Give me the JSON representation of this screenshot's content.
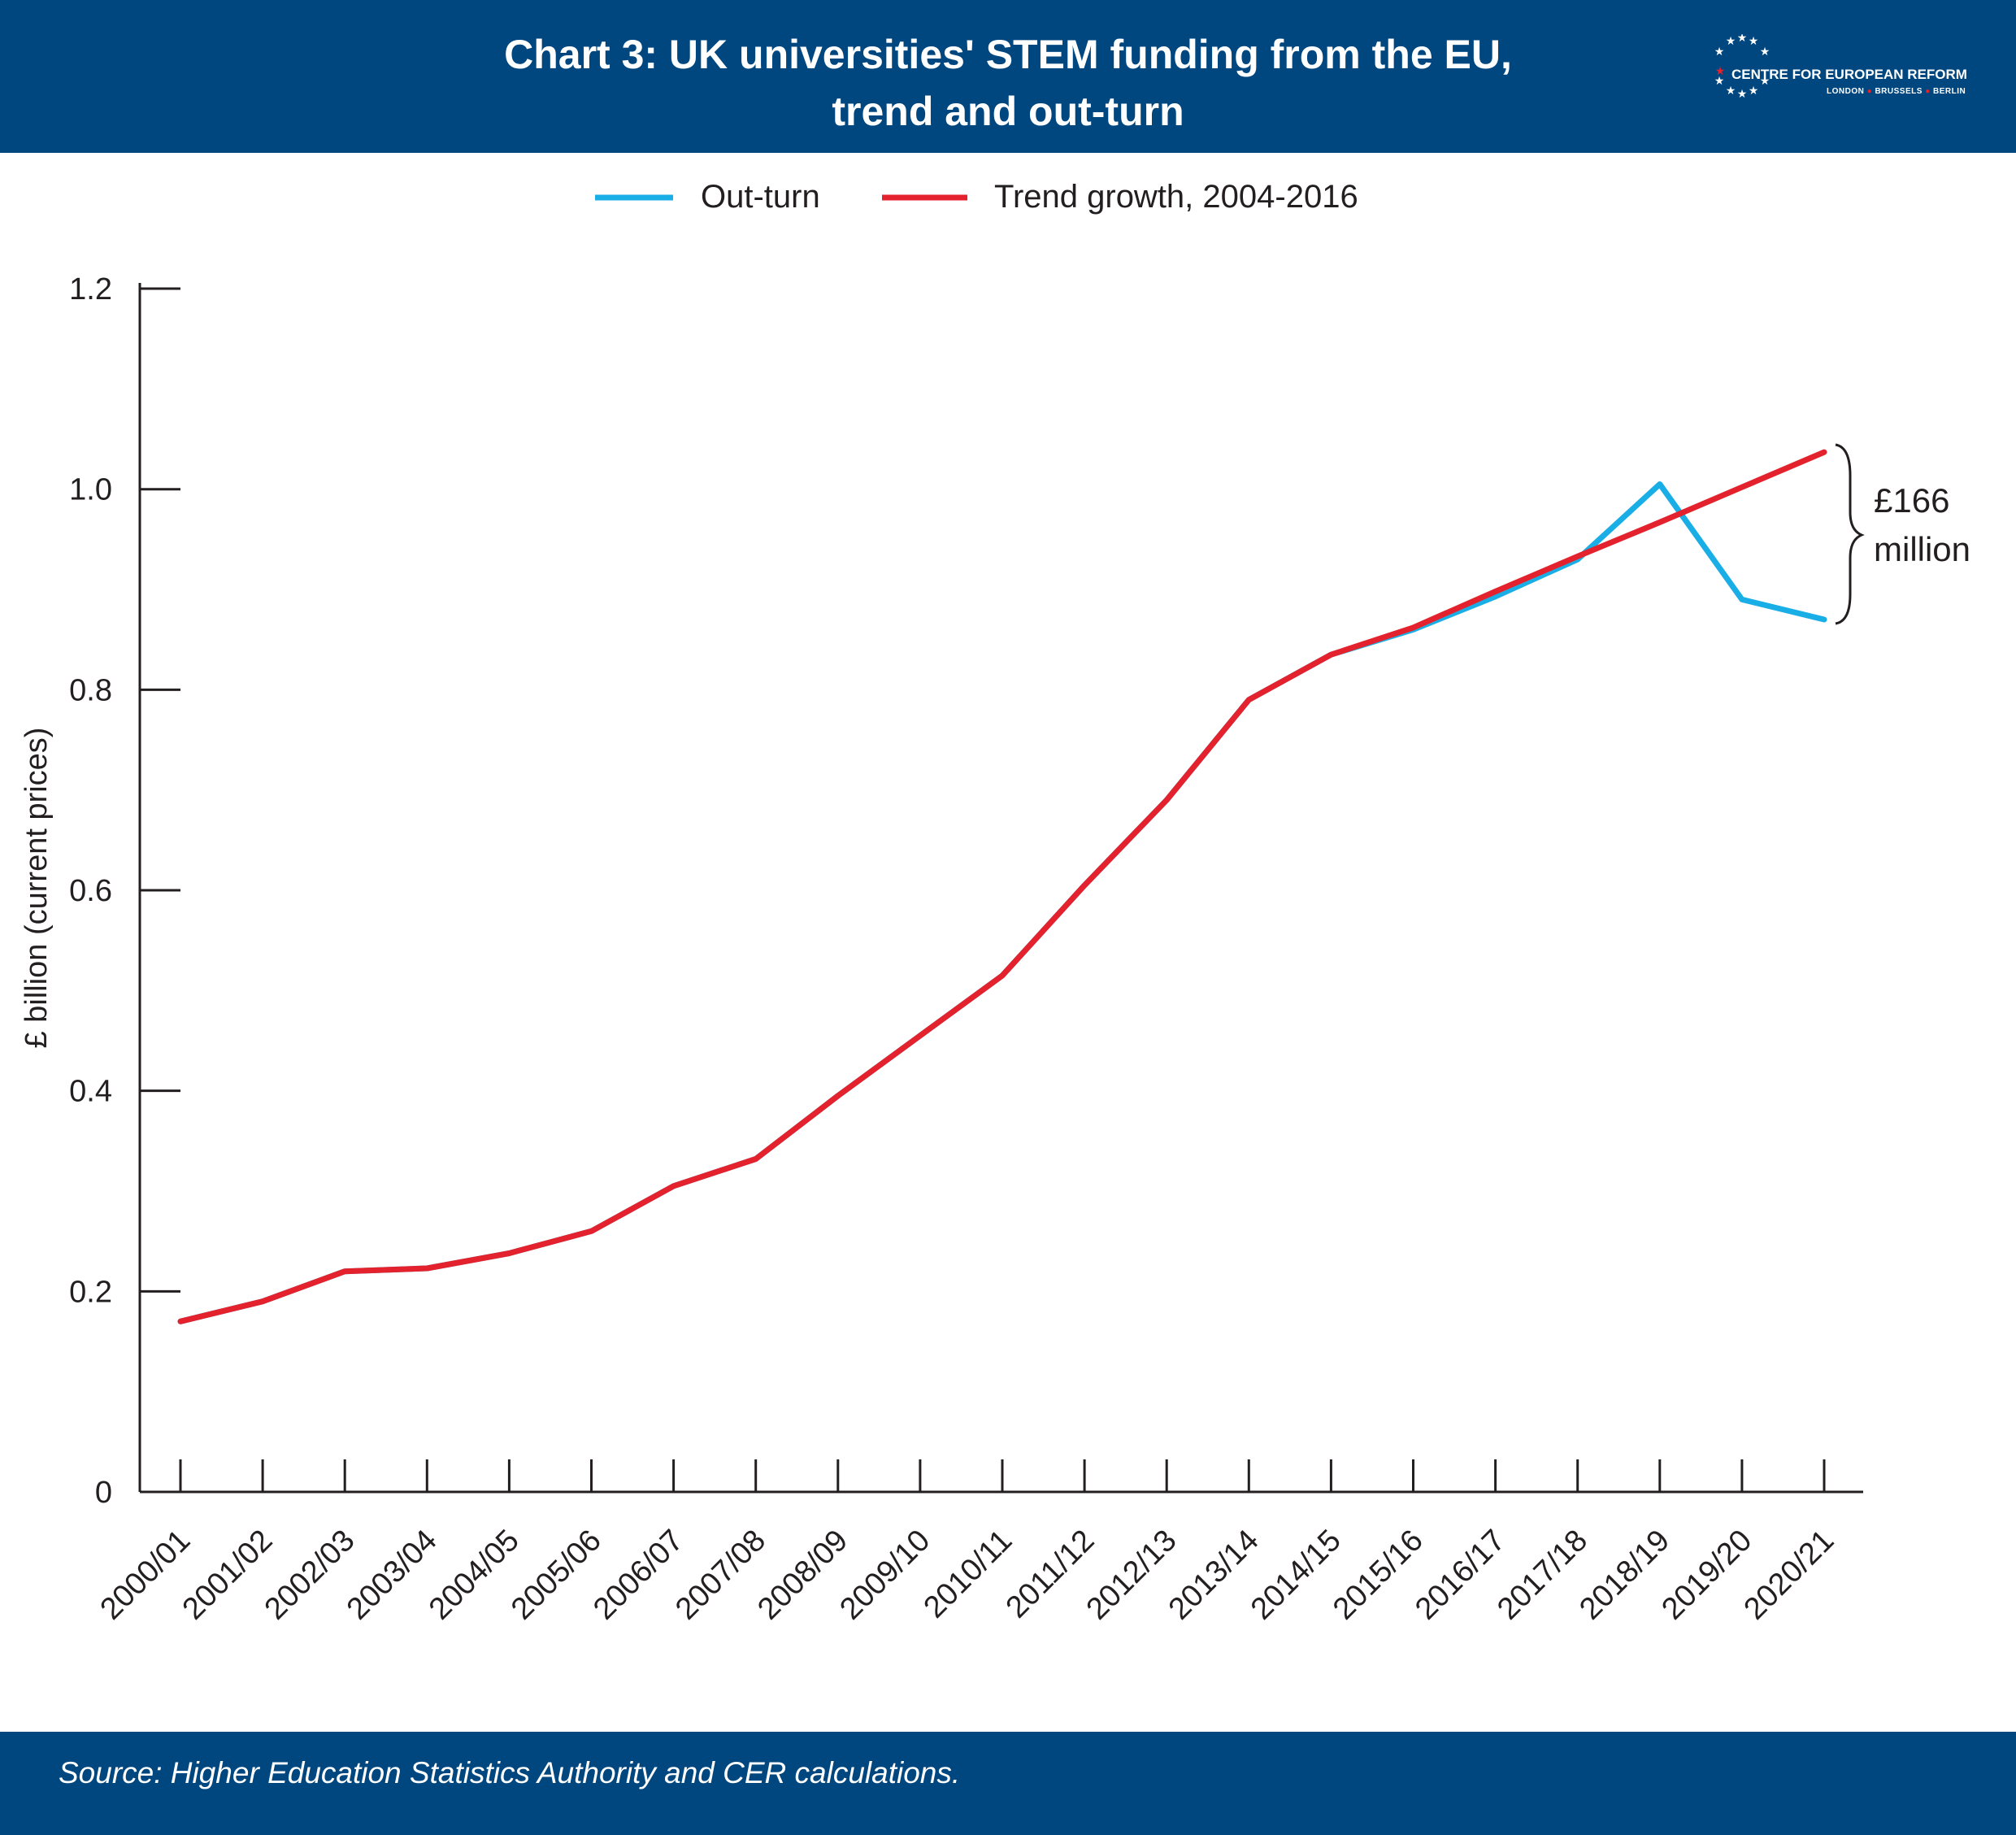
{
  "header": {
    "title_line1": "Chart 3: UK universities' STEM funding from the EU,",
    "title_line2": "trend and out-turn",
    "logo_text": "CENTRE FOR EUROPEAN REFORM",
    "logo_cities": [
      "LONDON",
      "BRUSSELS",
      "BERLIN"
    ]
  },
  "footer": {
    "source": "Source: Higher Education Statistics Authority and CER calculations."
  },
  "colors": {
    "header_bg": "#00467f",
    "outturn": "#1aaee6",
    "trend": "#e3222d",
    "axis": "#231f20"
  },
  "chart_data": {
    "type": "line",
    "title": "Chart 3: UK universities' STEM funding from the EU, trend and out-turn",
    "xlabel": "",
    "ylabel": "£ billion (current prices)",
    "ylim": [
      0,
      1.2
    ],
    "yticks": [
      0,
      0.2,
      0.4,
      0.6,
      0.8,
      1.0,
      1.2
    ],
    "ytick_labels": [
      "0",
      "0.2",
      "0.4",
      "0.6",
      "0.8",
      "1.0",
      "1.2"
    ],
    "grid": false,
    "legend_position": "top-center",
    "categories": [
      "2000/01",
      "2001/02",
      "2002/03",
      "2003/04",
      "2004/05",
      "2005/06",
      "2006/07",
      "2007/08",
      "2008/09",
      "2009/10",
      "2010/11",
      "2011/12",
      "2012/13",
      "2013/14",
      "2014/15",
      "2015/16",
      "2016/17",
      "2017/18",
      "2018/19",
      "2019/20",
      "2020/21"
    ],
    "series": [
      {
        "name": "Out-turn",
        "color": "#1aaee6",
        "values": [
          0.17,
          0.19,
          0.22,
          0.223,
          0.238,
          0.26,
          0.305,
          0.332,
          0.395,
          0.455,
          0.515,
          0.605,
          0.69,
          0.79,
          0.835,
          0.86,
          0.893,
          0.93,
          1.005,
          0.89,
          0.87
        ]
      },
      {
        "name": "Trend growth, 2004-2016",
        "color": "#e3222d",
        "values": [
          0.17,
          0.19,
          0.22,
          0.223,
          0.238,
          0.26,
          0.305,
          0.332,
          0.395,
          0.455,
          0.515,
          0.605,
          0.69,
          0.79,
          0.835,
          0.862,
          0.898,
          0.933,
          0.967,
          1.002,
          1.037
        ]
      }
    ],
    "annotations": [
      {
        "text_lines": [
          "£166",
          "million"
        ]
      }
    ]
  }
}
